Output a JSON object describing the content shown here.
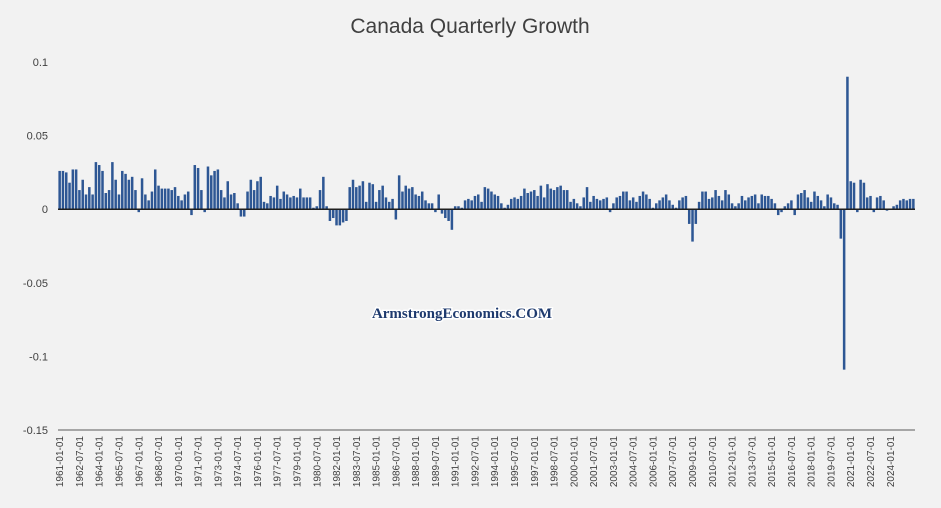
{
  "chart_data": {
    "type": "bar",
    "title": "Canada Quarterly Growth",
    "watermark": "ArmstrongEconomics.COM",
    "ylim": [
      -0.15,
      0.1
    ],
    "yticks": [
      "0.1",
      "0.05",
      "0",
      "-0.05",
      "-0.1",
      "-0.15"
    ],
    "ytick_values": [
      0.1,
      0.05,
      0,
      -0.05,
      -0.1,
      -0.15
    ],
    "grid": false,
    "legend": "none",
    "bar_color": "#2e5794",
    "x_tick_labels": [
      "1961-01-01",
      "1962-07-01",
      "1964-01-01",
      "1965-07-01",
      "1967-01-01",
      "1968-07-01",
      "1970-01-01",
      "1971-07-01",
      "1973-01-01",
      "1974-07-01",
      "1976-01-01",
      "1977-07-01",
      "1979-01-01",
      "1980-07-01",
      "1982-01-01",
      "1983-07-01",
      "1985-01-01",
      "1986-07-01",
      "1988-01-01",
      "1989-07-01",
      "1991-01-01",
      "1992-07-01",
      "1994-01-01",
      "1995-07-01",
      "1997-01-01",
      "1998-07-01",
      "2000-01-01",
      "2001-07-01",
      "2003-01-01",
      "2004-07-01",
      "2006-01-01",
      "2007-07-01",
      "2009-01-01",
      "2010-07-01",
      "2012-01-01",
      "2013-07-01",
      "2015-01-01",
      "2016-07-01",
      "2018-01-01",
      "2019-07-01",
      "2021-01-01",
      "2022-07-01",
      "2024-01-01"
    ],
    "x_start": "1961-01-01",
    "values": [
      0.026,
      0.026,
      0.025,
      0.018,
      0.027,
      0.027,
      0.013,
      0.02,
      0.01,
      0.015,
      0.01,
      0.032,
      0.03,
      0.026,
      0.011,
      0.013,
      0.032,
      0.02,
      0.01,
      0.026,
      0.024,
      0.02,
      0.022,
      0.013,
      -0.002,
      0.021,
      0.01,
      0.006,
      0.012,
      0.027,
      0.016,
      0.014,
      0.014,
      0.014,
      0.013,
      0.015,
      0.009,
      0.006,
      0.01,
      0.012,
      -0.004,
      0.03,
      0.028,
      0.013,
      -0.002,
      0.029,
      0.023,
      0.026,
      0.027,
      0.013,
      0.008,
      0.019,
      0.01,
      0.011,
      0.004,
      -0.005,
      -0.005,
      0.012,
      0.02,
      0.013,
      0.019,
      0.022,
      0.005,
      0.004,
      0.009,
      0.008,
      0.016,
      0.007,
      0.012,
      0.01,
      0.008,
      0.009,
      0.008,
      0.014,
      0.008,
      0.008,
      0.008,
      0.001,
      0.002,
      0.013,
      0.022,
      0.002,
      -0.008,
      -0.006,
      -0.011,
      -0.011,
      -0.009,
      -0.008,
      0.015,
      0.02,
      0.015,
      0.016,
      0.019,
      0.005,
      0.018,
      0.017,
      0.005,
      0.013,
      0.016,
      0.008,
      0.005,
      0.007,
      -0.007,
      0.023,
      0.012,
      0.016,
      0.014,
      0.015,
      0.01,
      0.009,
      0.012,
      0.006,
      0.004,
      0.004,
      -0.002,
      0.01,
      -0.003,
      -0.006,
      -0.008,
      -0.014,
      0.002,
      0.002,
      0.001,
      0.006,
      0.007,
      0.006,
      0.009,
      0.01,
      0.005,
      0.015,
      0.014,
      0.012,
      0.01,
      0.009,
      0.004,
      0.001,
      0.003,
      0.007,
      0.008,
      0.007,
      0.009,
      0.014,
      0.011,
      0.012,
      0.013,
      0.009,
      0.016,
      0.008,
      0.017,
      0.014,
      0.013,
      0.015,
      0.016,
      0.013,
      0.013,
      0.005,
      0.007,
      0.004,
      0.002,
      0.008,
      0.015,
      0.005,
      0.009,
      0.007,
      0.006,
      0.007,
      0.008,
      -0.002,
      0.004,
      0.008,
      0.009,
      0.012,
      0.012,
      0.006,
      0.008,
      0.005,
      0.009,
      0.012,
      0.01,
      0.007,
      0.001,
      0.004,
      0.006,
      0.008,
      0.01,
      0.006,
      0.003,
      0.001,
      0.006,
      0.008,
      0.009,
      -0.01,
      -0.022,
      -0.01,
      0.005,
      0.012,
      0.012,
      0.007,
      0.008,
      0.013,
      0.009,
      0.006,
      0.013,
      0.01,
      0.004,
      0.002,
      0.004,
      0.009,
      0.006,
      0.008,
      0.009,
      0.01,
      0.004,
      0.01,
      0.009,
      0.009,
      0.007,
      0.004,
      -0.004,
      -0.002,
      0.002,
      0.004,
      0.006,
      -0.004,
      0.01,
      0.011,
      0.013,
      0.008,
      0.005,
      0.012,
      0.009,
      0.006,
      0.002,
      0.01,
      0.008,
      0.004,
      0.003,
      -0.02,
      -0.109,
      0.09,
      0.019,
      0.018,
      -0.002,
      0.02,
      0.018,
      0.008,
      0.009,
      -0.002,
      0.008,
      0.009,
      0.006,
      -0.001,
      0.0,
      0.002,
      0.003,
      0.006,
      0.007,
      0.006,
      0.007,
      0.007
    ]
  }
}
